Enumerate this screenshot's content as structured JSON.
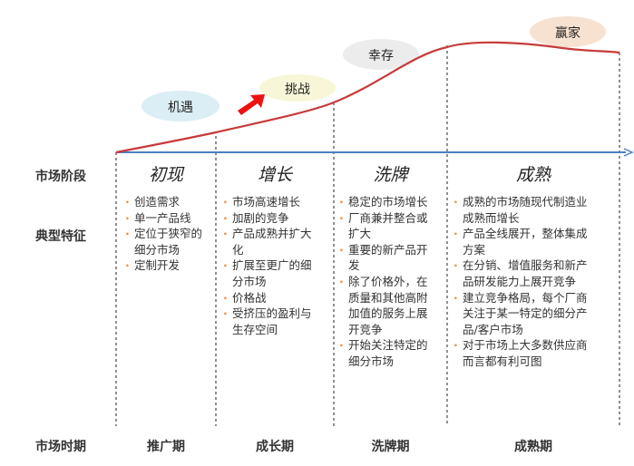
{
  "row_labels": {
    "stage": "市场阶段",
    "features": "典型特征",
    "period": "市场时期"
  },
  "bubbles": [
    {
      "label": "机遇",
      "color": "#dbeef5"
    },
    {
      "label": "挑战",
      "color": "#f7f7d8"
    },
    {
      "label": "幸存",
      "color": "#ececec"
    },
    {
      "label": "赢家",
      "color": "#f7e1d0"
    }
  ],
  "colors": {
    "curve": "#c83a3a",
    "axis": "#4a7fc4",
    "arrow": "#ee1111",
    "bullet": "#f08a3c"
  },
  "stages": [
    {
      "name": "初现",
      "period": "推广期",
      "features": [
        "创造需求",
        "单一产品线",
        "定位于狭窄的细分市场",
        "定制开发"
      ]
    },
    {
      "name": "增长",
      "period": "成长期",
      "features": [
        "市场高速增长",
        "加剧的竞争",
        "产品成熟并扩大化",
        "扩展至更广的细分市场",
        "价格战",
        "受挤压的盈利与生存空间"
      ]
    },
    {
      "name": "洗牌",
      "period": "洗牌期",
      "features": [
        "稳定的市场增长",
        "厂商兼并整合或扩大",
        "重要的新产品开发",
        "除了价格外，在质量和其他高附加值的服务上展开竞争",
        "开始关注特定的细分市场"
      ]
    },
    {
      "name": "成熟",
      "period": "成熟期",
      "features": [
        "成熟的市场随现代制造业成熟而增长",
        "产品全线展开，整体集成方案",
        "在分销、增值服务和新产品研发能力上展开竞争",
        "建立竞争格局，每个厂商关注于某一特定的细分产品/客户市场",
        "对于市场上大多数供应商而言都有利可图"
      ]
    }
  ]
}
